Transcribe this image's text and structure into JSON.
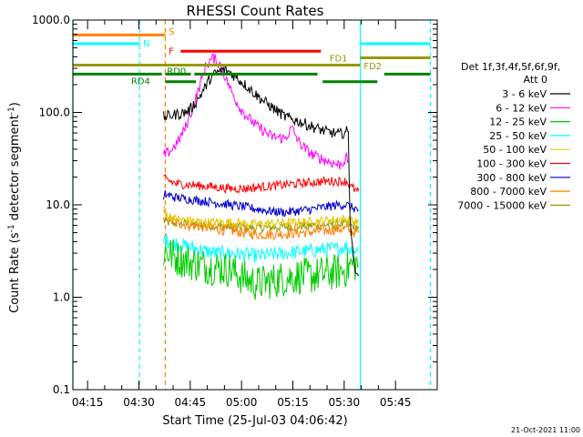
{
  "chart_data": {
    "type": "line",
    "title": "RHESSI Count Rates",
    "xlabel": "Start Time (25-Jul-03 04:06:42)",
    "ylabel": "Count Rate (s⁻¹ detector segment⁻¹)",
    "ylabel_parts": [
      "Count Rate (s",
      "-1",
      " detector segment",
      "-1",
      ")"
    ],
    "yscale": "log",
    "ylim": [
      0.1,
      1000
    ],
    "xlim_minutes": [
      4.0,
      110.5
    ],
    "ytick_values": [
      0.1,
      1,
      10,
      100,
      1000
    ],
    "ytick_labels": [
      "0.1",
      "1.0",
      "10.0",
      "100.0",
      "1000.0"
    ],
    "xtick_minutes": [
      8.3,
      23.3,
      38.3,
      53.3,
      68.3,
      83.3,
      98.3
    ],
    "xtick_labels": [
      "04:15",
      "04:30",
      "04:45",
      "05:00",
      "05:15",
      "05:30",
      "05:45"
    ],
    "footer_date": "21-Oct-2021 11:00",
    "legend": {
      "header": [
        "Det 1f,3f,4f,5f,6f,9f,",
        "Att 0"
      ],
      "entries": [
        {
          "label": "3 - 6 keV",
          "color": "#000000"
        },
        {
          "label": "6 - 12 keV",
          "color": "#ff00ff"
        },
        {
          "label": "12 - 25 keV",
          "color": "#00cc00"
        },
        {
          "label": "25 - 50 keV",
          "color": "#00ffff"
        },
        {
          "label": "50 - 100 keV",
          "color": "#e6c800"
        },
        {
          "label": "100 - 300 keV",
          "color": "#ff0000"
        },
        {
          "label": "300 - 800 keV",
          "color": "#0000cc"
        },
        {
          "label": "800 - 7000 keV",
          "color": "#ff8000"
        },
        {
          "label": "7000 - 15000 keV",
          "color": "#999900"
        }
      ]
    },
    "series": [
      {
        "name": "3 - 6 keV",
        "color": "#000000",
        "noise": 0.06,
        "x": [
          30.5,
          31,
          32,
          34,
          36,
          38,
          40,
          42,
          44,
          46,
          48,
          50,
          52,
          55,
          58,
          62,
          66,
          70,
          74,
          78,
          80,
          82,
          84,
          84.5,
          85,
          86,
          87,
          87.5
        ],
        "y": [
          90,
          90,
          92,
          95,
          98,
          105,
          130,
          170,
          230,
          270,
          290,
          270,
          235,
          190,
          150,
          115,
          90,
          80,
          70,
          62,
          60,
          58,
          62,
          60,
          8,
          2.5,
          1.9,
          1.7
        ]
      },
      {
        "name": "6 - 12 keV",
        "color": "#ff00ff",
        "noise": 0.06,
        "x": [
          30.5,
          31,
          33,
          35,
          37,
          39,
          41,
          43,
          45,
          47,
          49,
          51,
          53,
          55,
          58,
          62,
          66,
          68,
          70,
          72,
          74,
          78,
          82,
          84,
          84.5
        ],
        "y": [
          35,
          35,
          40,
          50,
          70,
          110,
          190,
          330,
          390,
          330,
          220,
          150,
          110,
          90,
          70,
          55,
          52,
          68,
          48,
          40,
          35,
          30,
          27,
          32,
          30
        ]
      },
      {
        "name": "12 - 25 keV",
        "color": "#00cc00",
        "noise": 0.2,
        "x": [
          30.5,
          31,
          34,
          38,
          42,
          46,
          50,
          54,
          58,
          62,
          66,
          70,
          74,
          78,
          82,
          84,
          85,
          87,
          87.5
        ],
        "y": [
          3.0,
          3.2,
          2.7,
          2.4,
          2.2,
          2.1,
          2.0,
          1.6,
          1.4,
          1.5,
          1.6,
          1.7,
          1.7,
          1.8,
          1.9,
          2.0,
          2.2,
          2.3,
          2.2
        ]
      },
      {
        "name": "25 - 50 keV",
        "color": "#00ffff",
        "noise": 0.08,
        "x": [
          30.5,
          31,
          34,
          38,
          42,
          46,
          50,
          54,
          58,
          62,
          66,
          70,
          74,
          78,
          82,
          84,
          85,
          87,
          87.5
        ],
        "y": [
          4.0,
          4.2,
          3.8,
          3.5,
          3.2,
          3.0,
          3.0,
          2.9,
          2.8,
          2.9,
          3.0,
          3.1,
          3.2,
          3.3,
          3.4,
          3.5,
          3.3,
          3.2,
          3.1
        ]
      },
      {
        "name": "50 - 100 keV",
        "color": "#e6c800",
        "noise": 0.05,
        "x": [
          30.5,
          31,
          34,
          38,
          42,
          46,
          50,
          54,
          58,
          62,
          66,
          70,
          74,
          78,
          82,
          84,
          85,
          87,
          87.5
        ],
        "y": [
          9.5,
          8.0,
          7.0,
          6.8,
          6.5,
          6.5,
          6.5,
          6.3,
          6.2,
          6.3,
          6.4,
          6.5,
          6.6,
          6.8,
          7.0,
          7.0,
          6.8,
          6.5,
          6.5
        ]
      },
      {
        "name": "100 - 300 keV",
        "color": "#ff0000",
        "noise": 0.05,
        "x": [
          30.5,
          31,
          34,
          38,
          42,
          46,
          50,
          54,
          58,
          62,
          66,
          70,
          74,
          78,
          82,
          84,
          85,
          87,
          87.5
        ],
        "y": [
          19,
          19,
          17,
          16.5,
          16,
          15.5,
          15,
          15,
          15.5,
          16,
          16.5,
          17,
          17.5,
          18,
          18,
          18,
          16,
          14,
          14
        ]
      },
      {
        "name": "300 - 800 keV",
        "color": "#0000cc",
        "noise": 0.05,
        "x": [
          30.5,
          31,
          34,
          38,
          42,
          46,
          50,
          54,
          58,
          62,
          66,
          70,
          74,
          78,
          82,
          84,
          85,
          87,
          87.5
        ],
        "y": [
          11,
          13,
          12,
          11.5,
          11,
          10.5,
          10,
          9.5,
          9,
          8.5,
          8.3,
          8.6,
          9,
          9.5,
          10,
          10,
          9.5,
          9.0,
          8.8
        ]
      },
      {
        "name": "800 - 7000 keV",
        "color": "#ff8000",
        "noise": 0.06,
        "x": [
          30.5,
          31,
          34,
          38,
          42,
          46,
          50,
          54,
          58,
          62,
          66,
          70,
          74,
          78,
          82,
          84,
          85,
          87,
          87.5
        ],
        "y": [
          8.0,
          7.5,
          6.5,
          6.0,
          5.8,
          5.5,
          5.3,
          5.0,
          4.8,
          4.8,
          4.9,
          5.0,
          5.1,
          5.3,
          5.5,
          5.5,
          5.2,
          5.0,
          5.0
        ]
      },
      {
        "name": "7000 - 15000 keV",
        "color": "#999900",
        "noise": 0.05,
        "x": [
          30.5,
          31,
          34,
          38,
          42,
          46,
          50,
          54,
          58,
          62,
          66,
          70,
          74,
          78,
          82,
          84,
          85,
          87,
          87.5
        ],
        "y": [
          7.0,
          6.5,
          6.3,
          6.2,
          6.0,
          5.9,
          5.8,
          5.7,
          5.6,
          5.7,
          5.8,
          5.9,
          6.0,
          6.1,
          6.2,
          6.2,
          6.0,
          5.8,
          5.8
        ]
      }
    ],
    "flag_bars": [
      {
        "label": "S",
        "color": "#ff8000",
        "y": 690,
        "x_start": 4.0,
        "x_end": 31.0,
        "label_x": 32.0,
        "label_y": 760
      },
      {
        "label": "N",
        "color": "#00ffff",
        "y": 555,
        "x_start": 4.0,
        "x_end": 23.5,
        "label_x": 24.5,
        "label_y": 565
      },
      {
        "label": "N",
        "color": "#00ffff",
        "y": 555,
        "x_start": 88.0,
        "x_end": 108.5,
        "label_x": null,
        "label_y": null
      },
      {
        "label": "F",
        "color": "#ff0000",
        "y": 460,
        "x_start": 35.5,
        "x_end": 76.5,
        "label_x": 32.0,
        "label_y": 470
      },
      {
        "label": "FD1",
        "color": "#999900",
        "y": 325,
        "x_start": 4.0,
        "x_end": 88.0,
        "label_x": 79.0,
        "label_y": 390
      },
      {
        "label": "",
        "color": "#999900",
        "y": 390,
        "x_start": 88.0,
        "x_end": 108.5,
        "label_x": null,
        "label_y": null
      },
      {
        "label": "FD2",
        "color": "#999900",
        "y": 320,
        "x_start": 88.0,
        "x_end": 88.0,
        "label_x": 89.0,
        "label_y": 320
      },
      {
        "label": "RD0",
        "color": "#008000",
        "y": 260,
        "x_start": 31.0,
        "x_end": 38.5,
        "label_x": 31.5,
        "label_y": 285
      },
      {
        "label": "",
        "color": "#008000",
        "y": 260,
        "x_start": 39.5,
        "x_end": 75.5,
        "label_x": null,
        "label_y": null
      },
      {
        "label": "",
        "color": "#008000",
        "y": 260,
        "x_start": 95.0,
        "x_end": 108.5,
        "label_x": null,
        "label_y": null
      },
      {
        "label": "RD4",
        "color": "#008000",
        "y": 260,
        "x_start": 4.0,
        "x_end": 30.0,
        "label_x": 21.0,
        "label_y": 220
      },
      {
        "label": "",
        "color": "#008000",
        "y": 215,
        "x_start": 31.0,
        "x_end": 40.0,
        "label_x": null,
        "label_y": null
      },
      {
        "label": "",
        "color": "#008000",
        "y": 215,
        "x_start": 77.0,
        "x_end": 93.0,
        "label_x": null,
        "label_y": null
      }
    ],
    "vlines": [
      {
        "x": 4.0,
        "color": "#00ffff",
        "style": "solid"
      },
      {
        "x": 23.5,
        "color": "#00ffff",
        "style": "dashed"
      },
      {
        "x": 31.0,
        "color": "#ff8000",
        "style": "dashed"
      },
      {
        "x": 88.0,
        "color": "#00ffff",
        "style": "solid"
      },
      {
        "x": 108.5,
        "color": "#00ffff",
        "style": "dashed"
      }
    ]
  }
}
